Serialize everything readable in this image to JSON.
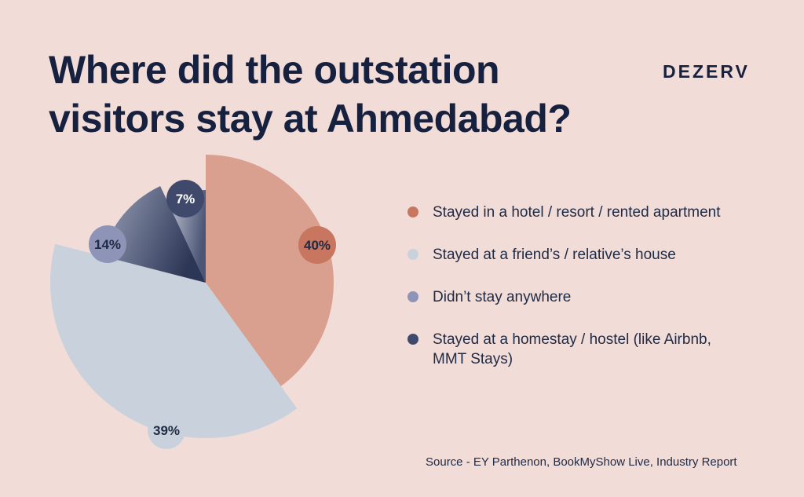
{
  "header": {
    "title": "Where did the outstation visitors stay at Ahmedabad?",
    "brand": "DEZERV"
  },
  "chart_data": {
    "type": "pie",
    "categories": [
      "Stayed in a hotel / resort / rented apartment",
      "Stayed at a friend’s / relative’s house",
      "Didn’t stay anywhere",
      "Stayed at a homestay / hostel (like Airbnb, MMT Stays)"
    ],
    "values": [
      40,
      39,
      14,
      7
    ],
    "labels": [
      "40%",
      "39%",
      "14%",
      "7%"
    ],
    "colors": [
      "#d9a08f",
      "#c8d1dc",
      "#9aa1b8",
      "#4a5473"
    ],
    "badge_colors": [
      "#c97660",
      "#c8d1dc",
      "#8e93b8",
      "#3f496b"
    ],
    "legend_position": "right"
  },
  "footer": {
    "source": "Source -  EY Parthenon, BookMyShow Live, Industry Report"
  }
}
